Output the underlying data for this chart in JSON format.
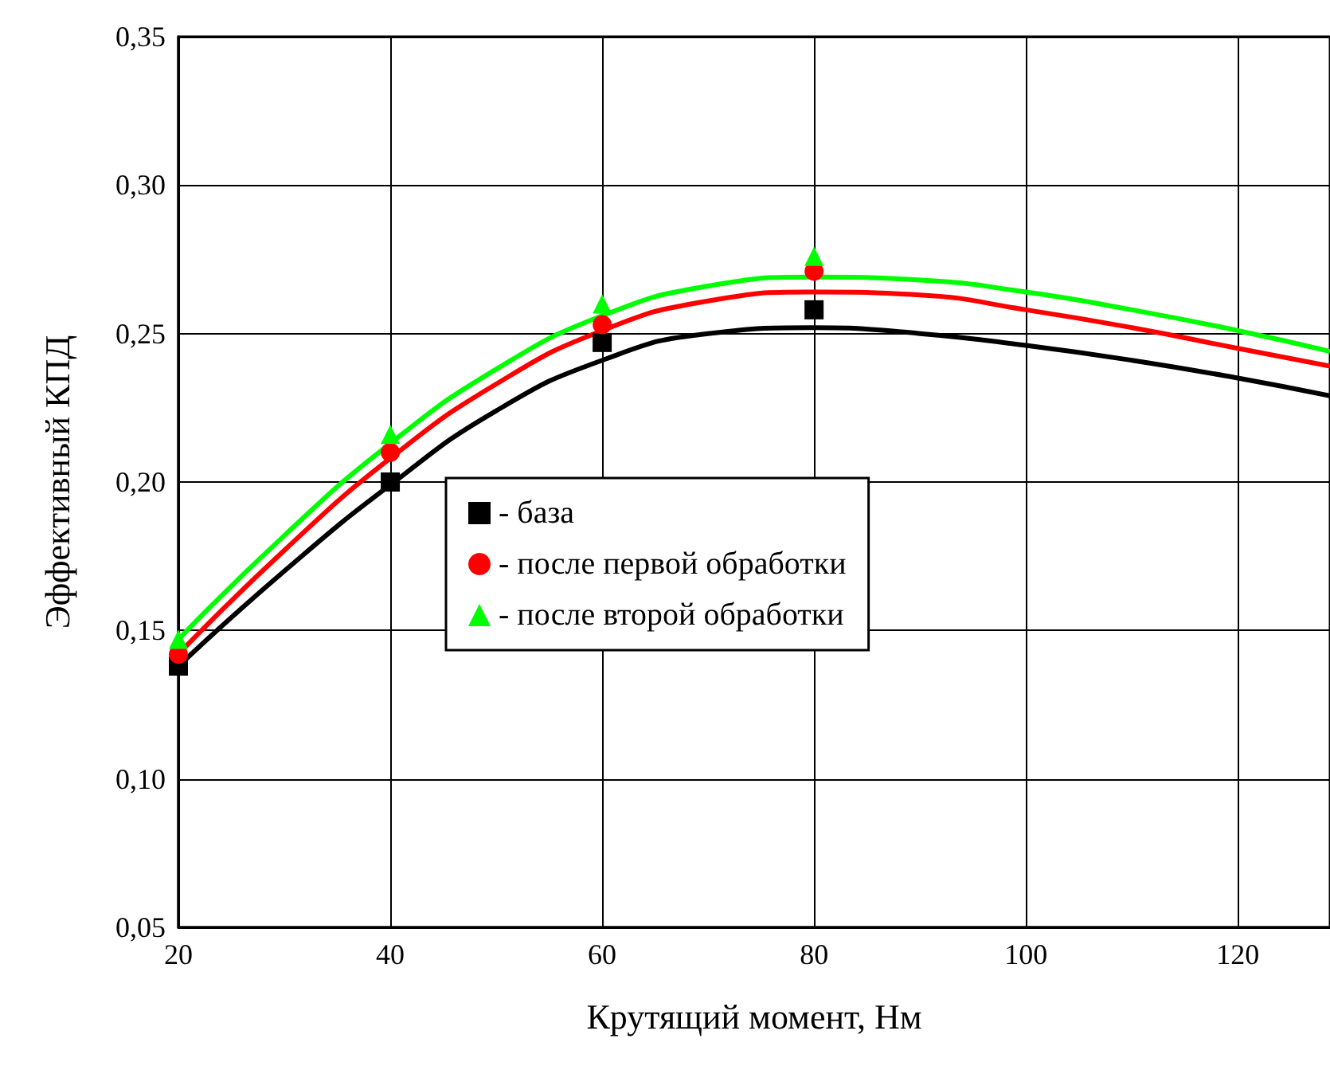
{
  "chart_data": {
    "type": "scatter",
    "xlabel": "Крутящий момент, Нм",
    "ylabel": "Эффективный КПД",
    "xlim": [
      20,
      128.7
    ],
    "xticks": [
      20,
      40,
      60,
      80,
      100,
      120
    ],
    "ylim": [
      0.05,
      0.35
    ],
    "yticks": [
      {
        "value": 0.05,
        "label": "0,05"
      },
      {
        "value": 0.1,
        "label": "0,10"
      },
      {
        "value": 0.15,
        "label": "0,15"
      },
      {
        "value": 0.2,
        "label": "0,20"
      },
      {
        "value": 0.25,
        "label": "0,25"
      },
      {
        "value": 0.3,
        "label": "0,30"
      },
      {
        "value": 0.35,
        "label": "0,35"
      }
    ],
    "grid": true,
    "legend": "center",
    "series": [
      {
        "name": "- база",
        "marker": "square",
        "color": "#000000",
        "x": [
          20,
          40,
          60,
          80
        ],
        "values": [
          0.138,
          0.2,
          0.247,
          0.258
        ]
      },
      {
        "name": "- после первой обработки",
        "marker": "circle",
        "color": "#ff0000",
        "x": [
          20,
          40,
          60,
          80
        ],
        "values": [
          0.142,
          0.21,
          0.253,
          0.271
        ]
      },
      {
        "name": "- после второй обработки",
        "marker": "triangle",
        "color": "#00ff00",
        "x": [
          20,
          40,
          60,
          80
        ],
        "values": [
          0.147,
          0.216,
          0.26,
          0.276
        ]
      },
      {
        "type": "line",
        "marker": "none",
        "line_style": "solid",
        "color": "#000000",
        "x": [
          20,
          30,
          40,
          50,
          60,
          70,
          80,
          90,
          100,
          110,
          120,
          128.7
        ],
        "values": [
          0.138,
          0.17,
          0.199,
          0.224,
          0.241,
          0.25,
          0.252,
          0.25,
          0.246,
          0.241,
          0.235,
          0.229
        ]
      },
      {
        "type": "line",
        "marker": "none",
        "line_style": "solid",
        "color": "#ff0000",
        "x": [
          20,
          30,
          40,
          50,
          60,
          70,
          80,
          90,
          100,
          110,
          120,
          128.7
        ],
        "values": [
          0.142,
          0.177,
          0.208,
          0.233,
          0.251,
          0.261,
          0.264,
          0.263,
          0.258,
          0.252,
          0.245,
          0.239
        ]
      },
      {
        "type": "line",
        "marker": "none",
        "line_style": "solid",
        "color": "#00ff00",
        "x": [
          20,
          30,
          40,
          50,
          60,
          70,
          80,
          90,
          100,
          110,
          120,
          128.7
        ],
        "values": [
          0.147,
          0.182,
          0.213,
          0.238,
          0.256,
          0.266,
          0.269,
          0.268,
          0.264,
          0.258,
          0.251,
          0.244
        ]
      }
    ]
  }
}
